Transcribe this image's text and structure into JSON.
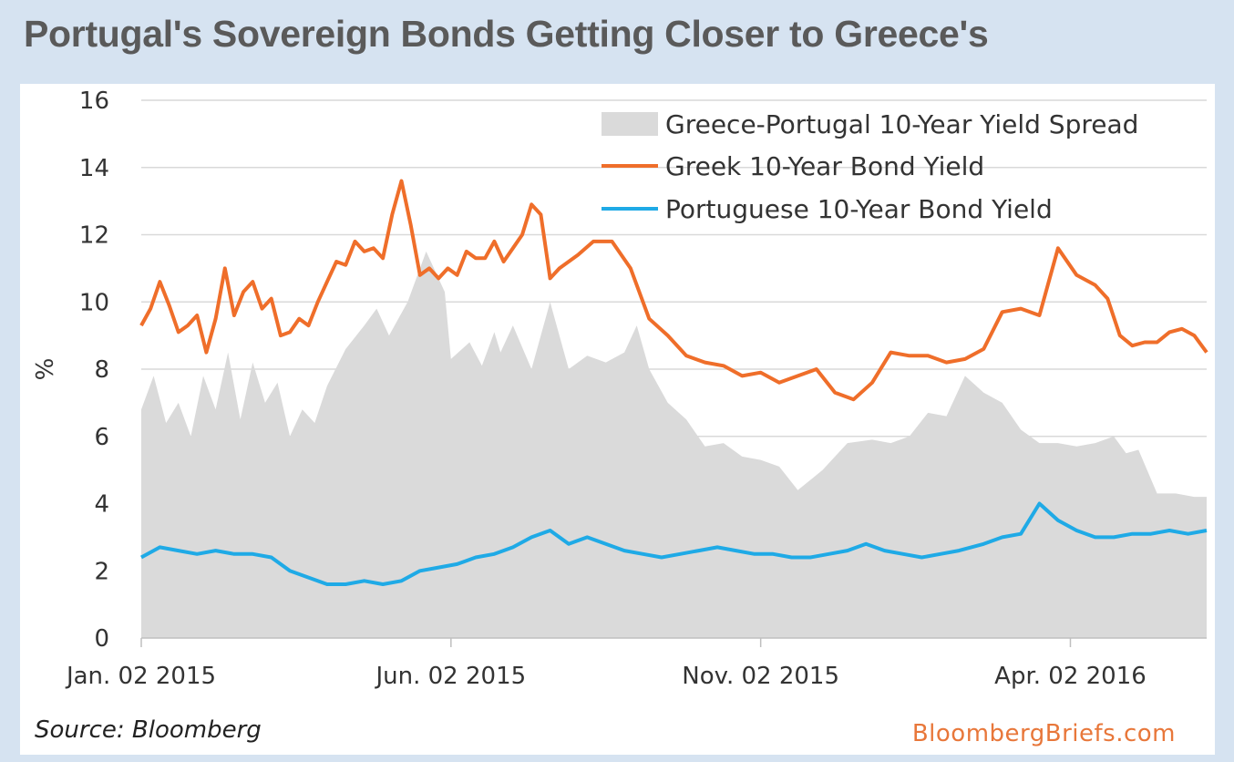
{
  "header": {
    "title": "Portugal's Sovereign Bonds Getting Closer to Greece's"
  },
  "footer": {
    "source": "Source: Bloomberg",
    "brand": "BloombergBriefs.com"
  },
  "colors": {
    "greek": "#ef6e2a",
    "portuguese": "#1faae6",
    "spread": "#dadada",
    "grid": "#d9d9d9"
  },
  "chart_data": {
    "type": "line",
    "title": "Portugal's Sovereign Bonds Getting Closer to Greece's",
    "ylabel": "%",
    "xlabel": "",
    "ylim": [
      0,
      16
    ],
    "yticks": [
      "0",
      "2",
      "4",
      "6",
      "8",
      "10",
      "12",
      "14",
      "16"
    ],
    "xticks": [
      "Jan. 02 2015",
      "Jun. 02 2015",
      "Nov. 02 2015",
      "Apr. 02 2016"
    ],
    "x_label_unit": "months since Jan. 02 2015",
    "xlim": [
      0,
      17.2
    ],
    "grid": true,
    "legend_position": "top-right",
    "series": [
      {
        "name": "Greece-Portugal 10-Year Yield Spread",
        "kind": "area",
        "x": [
          0,
          0.2,
          0.4,
          0.6,
          0.8,
          1.0,
          1.2,
          1.4,
          1.6,
          1.8,
          2.0,
          2.2,
          2.4,
          2.6,
          2.8,
          3.0,
          3.3,
          3.6,
          3.8,
          4.0,
          4.3,
          4.6,
          4.9,
          5.0,
          5.3,
          5.5,
          5.7,
          5.8,
          6.0,
          6.3,
          6.6,
          6.9,
          7.2,
          7.5,
          7.8,
          8.0,
          8.2,
          8.5,
          8.8,
          9.1,
          9.4,
          9.7,
          10.0,
          10.3,
          10.6,
          11.0,
          11.4,
          11.8,
          12.1,
          12.4,
          12.7,
          13.0,
          13.3,
          13.6,
          13.9,
          14.2,
          14.5,
          14.8,
          15.1,
          15.4,
          15.7,
          15.9,
          16.1,
          16.4,
          16.7,
          17.0,
          17.2
        ],
        "values": [
          6.8,
          7.8,
          6.4,
          7.0,
          6.0,
          7.8,
          6.8,
          8.5,
          6.5,
          8.2,
          7.0,
          7.6,
          6.0,
          6.8,
          6.4,
          7.5,
          8.6,
          9.3,
          9.8,
          9.0,
          10.0,
          11.5,
          10.3,
          8.3,
          8.8,
          8.1,
          9.1,
          8.5,
          9.3,
          8.0,
          10.0,
          8.0,
          8.4,
          8.2,
          8.5,
          9.3,
          8.0,
          7.0,
          6.5,
          5.7,
          5.8,
          5.4,
          5.3,
          5.1,
          4.4,
          5.0,
          5.8,
          5.9,
          5.8,
          6.0,
          6.7,
          6.6,
          7.8,
          7.3,
          7.0,
          6.2,
          5.8,
          5.8,
          5.7,
          5.8,
          6.0,
          5.5,
          5.6,
          4.3,
          4.3,
          4.2,
          4.2
        ]
      },
      {
        "name": "Greek 10-Year Bond Yield",
        "kind": "line",
        "x": [
          0,
          0.15,
          0.3,
          0.45,
          0.6,
          0.75,
          0.9,
          1.05,
          1.2,
          1.35,
          1.5,
          1.65,
          1.8,
          1.95,
          2.1,
          2.25,
          2.4,
          2.55,
          2.7,
          2.85,
          3.0,
          3.15,
          3.3,
          3.45,
          3.6,
          3.75,
          3.9,
          4.05,
          4.2,
          4.35,
          4.5,
          4.65,
          4.8,
          4.95,
          5.1,
          5.25,
          5.4,
          5.55,
          5.7,
          5.85,
          6.0,
          6.15,
          6.3,
          6.45,
          6.6,
          6.75,
          6.9,
          7.05,
          7.3,
          7.6,
          7.9,
          8.2,
          8.5,
          8.8,
          9.1,
          9.4,
          9.7,
          10.0,
          10.3,
          10.6,
          10.9,
          11.2,
          11.5,
          11.8,
          12.1,
          12.4,
          12.7,
          13.0,
          13.3,
          13.6,
          13.9,
          14.2,
          14.5,
          14.8,
          15.1,
          15.4,
          15.6,
          15.8,
          16.0,
          16.2,
          16.4,
          16.6,
          16.8,
          17.0,
          17.2
        ],
        "values": [
          9.3,
          9.8,
          10.6,
          9.9,
          9.1,
          9.3,
          9.6,
          8.5,
          9.5,
          11.0,
          9.6,
          10.3,
          10.6,
          9.8,
          10.1,
          9.0,
          9.1,
          9.5,
          9.3,
          10.0,
          10.6,
          11.2,
          11.1,
          11.8,
          11.5,
          11.6,
          11.3,
          12.6,
          13.6,
          12.3,
          10.8,
          11.0,
          10.7,
          11.0,
          10.8,
          11.5,
          11.3,
          11.3,
          11.8,
          11.2,
          11.6,
          12.0,
          12.9,
          12.6,
          10.7,
          11.0,
          11.2,
          11.4,
          11.8,
          11.8,
          11.0,
          9.5,
          9.0,
          8.4,
          8.2,
          8.1,
          7.8,
          7.9,
          7.6,
          7.8,
          8.0,
          7.3,
          7.1,
          7.6,
          8.5,
          8.4,
          8.4,
          8.2,
          8.3,
          8.6,
          9.7,
          9.8,
          9.6,
          11.6,
          10.8,
          10.5,
          10.1,
          9.0,
          8.7,
          8.8,
          8.8,
          9.1,
          9.2,
          9.0,
          8.5
        ]
      },
      {
        "name": "Portuguese 10-Year Bond Yield",
        "kind": "line",
        "x": [
          0,
          0.3,
          0.6,
          0.9,
          1.2,
          1.5,
          1.8,
          2.1,
          2.4,
          2.7,
          3.0,
          3.3,
          3.6,
          3.9,
          4.2,
          4.5,
          4.8,
          5.1,
          5.4,
          5.7,
          6.0,
          6.3,
          6.6,
          6.9,
          7.2,
          7.5,
          7.8,
          8.1,
          8.4,
          8.7,
          9.0,
          9.3,
          9.6,
          9.9,
          10.2,
          10.5,
          10.8,
          11.1,
          11.4,
          11.7,
          12.0,
          12.3,
          12.6,
          12.9,
          13.2,
          13.4,
          13.6,
          13.9,
          14.2,
          14.5,
          14.8,
          15.1,
          15.4,
          15.7,
          16.0,
          16.3,
          16.6,
          16.9,
          17.2
        ],
        "values": [
          2.4,
          2.7,
          2.6,
          2.5,
          2.6,
          2.5,
          2.5,
          2.4,
          2.0,
          1.8,
          1.6,
          1.6,
          1.7,
          1.6,
          1.7,
          2.0,
          2.1,
          2.2,
          2.4,
          2.5,
          2.7,
          3.0,
          3.2,
          2.8,
          3.0,
          2.8,
          2.6,
          2.5,
          2.4,
          2.5,
          2.6,
          2.7,
          2.6,
          2.5,
          2.5,
          2.4,
          2.4,
          2.5,
          2.6,
          2.8,
          2.6,
          2.5,
          2.4,
          2.5,
          2.6,
          2.7,
          2.8,
          3.0,
          3.1,
          4.0,
          3.5,
          3.2,
          3.0,
          3.0,
          3.1,
          3.1,
          3.2,
          3.1,
          3.2
        ]
      }
    ]
  }
}
